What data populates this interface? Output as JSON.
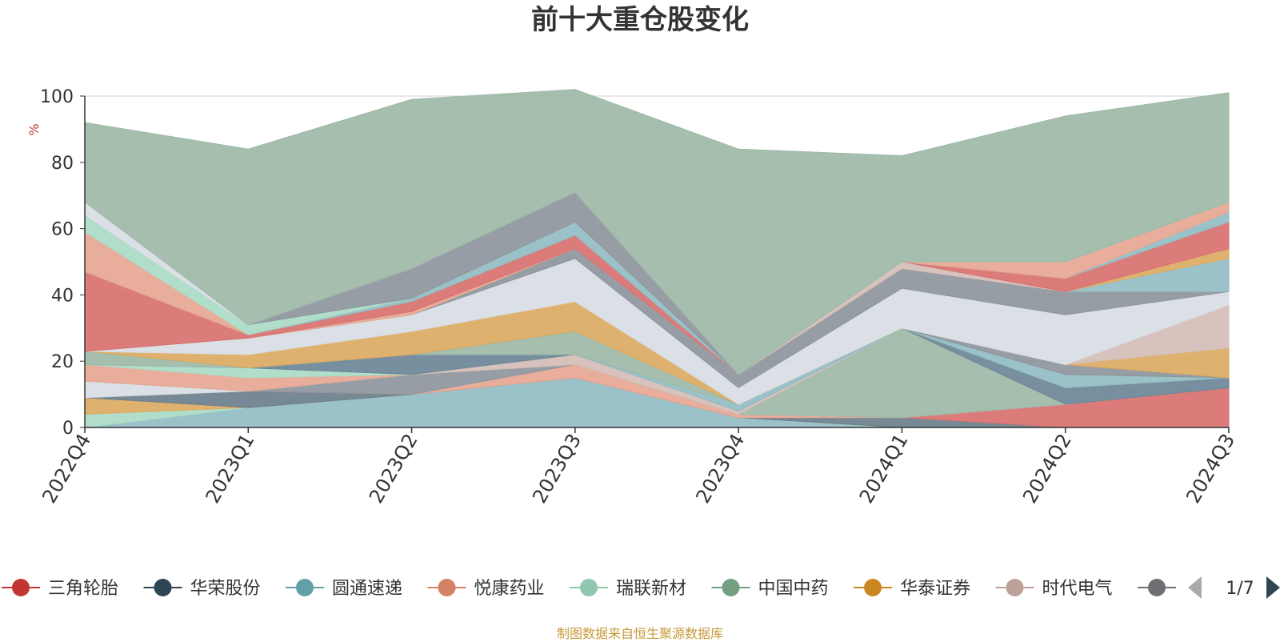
{
  "title": "前十大重仓股变化",
  "source_note": "制图数据来自恒生聚源数据库",
  "chart_data": {
    "type": "area",
    "stacked": true,
    "title": "前十大重仓股变化",
    "ylabel": "%",
    "ylim": [
      0,
      100
    ],
    "yticks": [
      0,
      20,
      40,
      60,
      80,
      100
    ],
    "grid": true,
    "categories": [
      "2022Q4",
      "2023Q1",
      "2023Q2",
      "2023Q3",
      "2023Q4",
      "2024Q1",
      "2024Q2",
      "2024Q3"
    ],
    "series": [
      {
        "name": "",
        "color": "#91bdc3",
        "values": [
          0,
          6,
          10,
          15,
          3,
          0,
          0,
          0
        ]
      },
      {
        "name": "",
        "color": "#a9dbc6",
        "values": [
          4,
          0,
          0,
          0,
          0,
          0,
          0,
          0
        ]
      },
      {
        "name": "",
        "color": "#dbab62",
        "values": [
          5,
          0,
          0,
          0,
          0,
          0,
          0,
          0
        ]
      },
      {
        "name": "",
        "color": "#6b7f8c",
        "values": [
          0,
          5,
          0,
          0,
          0,
          3,
          0,
          0
        ]
      },
      {
        "name": "",
        "color": "#d87170",
        "values": [
          0,
          0,
          0,
          0,
          0,
          0,
          7,
          12
        ]
      },
      {
        "name": "",
        "color": "#e6a792",
        "values": [
          0,
          0,
          0,
          4,
          1,
          0,
          0,
          0
        ]
      },
      {
        "name": "",
        "color": "#8e959d",
        "values": [
          0,
          0,
          6,
          0,
          0,
          0,
          0,
          0
        ]
      },
      {
        "name": "",
        "color": "#6d8597",
        "values": [
          0,
          0,
          0,
          0,
          0,
          0,
          0,
          3
        ]
      },
      {
        "name": "",
        "color": "#d8dde4",
        "values": [
          5,
          0,
          0,
          0,
          0,
          0,
          0,
          0
        ]
      },
      {
        "name": "",
        "color": "#9eb9a7",
        "values": [
          0,
          0,
          0,
          0,
          0,
          27,
          0,
          0
        ]
      },
      {
        "name": "",
        "color": "#d5bdb7",
        "values": [
          0,
          0,
          0,
          3,
          1,
          0,
          0,
          0
        ]
      },
      {
        "name": "",
        "color": "#e6a792",
        "values": [
          5,
          4,
          0,
          0,
          0,
          0,
          0,
          0
        ]
      },
      {
        "name": "",
        "color": "#a9dbc6",
        "values": [
          0,
          3,
          0,
          0,
          0,
          0,
          0,
          0
        ]
      },
      {
        "name": "",
        "color": "#6d8597",
        "values": [
          0,
          0,
          6,
          0,
          0,
          0,
          5,
          0
        ]
      },
      {
        "name": "",
        "color": "#91bdc3",
        "values": [
          0,
          0,
          0,
          0,
          2,
          0,
          4,
          0
        ]
      },
      {
        "name": "",
        "color": "#9eb9a7",
        "values": [
          4,
          0,
          0,
          7,
          0,
          0,
          0,
          0
        ]
      },
      {
        "name": "",
        "color": "#8e959d",
        "values": [
          0,
          0,
          0,
          0,
          0,
          0,
          3,
          0
        ]
      },
      {
        "name": "",
        "color": "#dbab62",
        "values": [
          0,
          4,
          7,
          9,
          0,
          0,
          0,
          9
        ]
      },
      {
        "name": "",
        "color": "#d5bdb7",
        "values": [
          0,
          0,
          0,
          0,
          0,
          0,
          0,
          13
        ]
      },
      {
        "name": "",
        "color": "#d8dde4",
        "values": [
          0,
          5,
          5,
          13,
          5,
          12,
          15,
          4
        ]
      },
      {
        "name": "",
        "color": "#8e959d",
        "values": [
          0,
          0,
          0,
          3,
          4,
          6,
          7,
          0
        ]
      },
      {
        "name": "",
        "color": "#91bdc3",
        "values": [
          0,
          0,
          0,
          0,
          0,
          0,
          0,
          10
        ]
      },
      {
        "name": "",
        "color": "#dbab62",
        "values": [
          0,
          0,
          0,
          0,
          0,
          0,
          0,
          3
        ]
      },
      {
        "name": "",
        "color": "#d5bdb7",
        "values": [
          0,
          0,
          0,
          0,
          0,
          2,
          0,
          0
        ]
      },
      {
        "name": "",
        "color": "#e6a792",
        "values": [
          0,
          0,
          1,
          0,
          0,
          0,
          0,
          0
        ]
      },
      {
        "name": "",
        "color": "#d87170",
        "values": [
          24,
          1,
          3,
          4,
          0,
          0,
          4,
          8
        ]
      },
      {
        "name": "",
        "color": "#91bdc3",
        "values": [
          0,
          0,
          1,
          4,
          0,
          0,
          0,
          3
        ]
      },
      {
        "name": "",
        "color": "#e6a792",
        "values": [
          12,
          0,
          0,
          0,
          0,
          0,
          5,
          3
        ]
      },
      {
        "name": "",
        "color": "#a9dbc6",
        "values": [
          5,
          3,
          0,
          0,
          0,
          0,
          0,
          0
        ]
      },
      {
        "name": "",
        "color": "#8e959d",
        "values": [
          0,
          0,
          9,
          9,
          0,
          0,
          0,
          0
        ]
      },
      {
        "name": "",
        "color": "#d8dde4",
        "values": [
          4,
          0,
          0,
          0,
          0,
          0,
          0,
          0
        ]
      },
      {
        "name": "",
        "color": "#9eb9a7",
        "values": [
          24,
          53,
          51,
          31,
          68,
          32,
          44,
          33
        ]
      }
    ],
    "legend": {
      "position": "bottom",
      "page": "1/7",
      "items": [
        {
          "name": "三角轮胎",
          "color": "#c23531"
        },
        {
          "name": "华荣股份",
          "color": "#2f4554"
        },
        {
          "name": "圆通速递",
          "color": "#61a0a8"
        },
        {
          "name": "悦康药业",
          "color": "#d48265"
        },
        {
          "name": "瑞联新材",
          "color": "#91c7ae"
        },
        {
          "name": "中国中药",
          "color": "#749f83"
        },
        {
          "name": "华泰证券",
          "color": "#ca8622"
        },
        {
          "name": "时代电气",
          "color": "#bda29a"
        },
        {
          "name": "",
          "color": "#6e7074"
        }
      ]
    }
  }
}
